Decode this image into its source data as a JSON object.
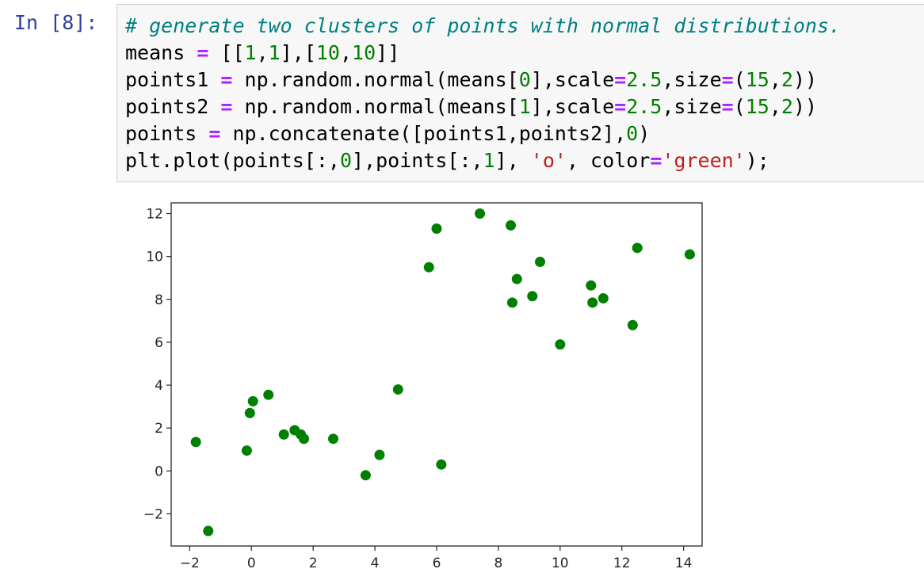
{
  "cell": {
    "prompt": "In [8]:",
    "code_lines": [
      [
        {
          "t": "# generate two clusters of points with normal distributions.",
          "c": "comment"
        }
      ],
      [
        {
          "t": "means ",
          "c": "plain"
        },
        {
          "t": "=",
          "c": "op"
        },
        {
          "t": " [[",
          "c": "plain"
        },
        {
          "t": "1",
          "c": "num"
        },
        {
          "t": ",",
          "c": "plain"
        },
        {
          "t": "1",
          "c": "num"
        },
        {
          "t": "],[",
          "c": "plain"
        },
        {
          "t": "10",
          "c": "num"
        },
        {
          "t": ",",
          "c": "plain"
        },
        {
          "t": "10",
          "c": "num"
        },
        {
          "t": "]]",
          "c": "plain"
        }
      ],
      [
        {
          "t": "points1 ",
          "c": "plain"
        },
        {
          "t": "=",
          "c": "op"
        },
        {
          "t": " np.random.normal(means[",
          "c": "plain"
        },
        {
          "t": "0",
          "c": "num"
        },
        {
          "t": "],scale",
          "c": "plain"
        },
        {
          "t": "=",
          "c": "op"
        },
        {
          "t": "2.5",
          "c": "num"
        },
        {
          "t": ",size",
          "c": "plain"
        },
        {
          "t": "=",
          "c": "op"
        },
        {
          "t": "(",
          "c": "plain"
        },
        {
          "t": "15",
          "c": "num"
        },
        {
          "t": ",",
          "c": "plain"
        },
        {
          "t": "2",
          "c": "num"
        },
        {
          "t": "))",
          "c": "plain"
        }
      ],
      [
        {
          "t": "points2 ",
          "c": "plain"
        },
        {
          "t": "=",
          "c": "op"
        },
        {
          "t": " np.random.normal(means[",
          "c": "plain"
        },
        {
          "t": "1",
          "c": "num"
        },
        {
          "t": "],scale",
          "c": "plain"
        },
        {
          "t": "=",
          "c": "op"
        },
        {
          "t": "2.5",
          "c": "num"
        },
        {
          "t": ",size",
          "c": "plain"
        },
        {
          "t": "=",
          "c": "op"
        },
        {
          "t": "(",
          "c": "plain"
        },
        {
          "t": "15",
          "c": "num"
        },
        {
          "t": ",",
          "c": "plain"
        },
        {
          "t": "2",
          "c": "num"
        },
        {
          "t": "))",
          "c": "plain"
        }
      ],
      [
        {
          "t": "points ",
          "c": "plain"
        },
        {
          "t": "=",
          "c": "op"
        },
        {
          "t": " np.concatenate([points1,points2],",
          "c": "plain"
        },
        {
          "t": "0",
          "c": "num"
        },
        {
          "t": ")",
          "c": "plain"
        }
      ],
      [
        {
          "t": "plt.plot(points[:,",
          "c": "plain"
        },
        {
          "t": "0",
          "c": "num"
        },
        {
          "t": "],points[:,",
          "c": "plain"
        },
        {
          "t": "1",
          "c": "num"
        },
        {
          "t": "], ",
          "c": "plain"
        },
        {
          "t": "'o'",
          "c": "str"
        },
        {
          "t": ", color",
          "c": "plain"
        },
        {
          "t": "=",
          "c": "op"
        },
        {
          "t": "'green'",
          "c": "str"
        },
        {
          "t": ");",
          "c": "plain"
        }
      ]
    ]
  },
  "colors": {
    "prompt": "#303f9f",
    "marker": "#008000",
    "axes": "#262626"
  },
  "chart_data": {
    "type": "scatter",
    "title": "",
    "xlabel": "",
    "ylabel": "",
    "xlim": [
      -2.6,
      14.6
    ],
    "ylim": [
      -3.5,
      12.5
    ],
    "xticks": [
      -2,
      0,
      2,
      4,
      6,
      8,
      10,
      12,
      14
    ],
    "yticks": [
      -2,
      0,
      2,
      4,
      6,
      8,
      10,
      12
    ],
    "xtick_labels": [
      "−2",
      "0",
      "2",
      "4",
      "6",
      "8",
      "10",
      "12",
      "14"
    ],
    "ytick_labels": [
      "−2",
      "0",
      "2",
      "4",
      "6",
      "8",
      "10",
      "12"
    ],
    "grid": false,
    "marker": "o",
    "color": "green",
    "points": [
      [
        -1.8,
        1.35
      ],
      [
        -1.4,
        -2.8
      ],
      [
        -0.15,
        0.95
      ],
      [
        -0.05,
        2.7
      ],
      [
        0.05,
        3.25
      ],
      [
        0.55,
        3.55
      ],
      [
        1.05,
        1.7
      ],
      [
        1.4,
        1.9
      ],
      [
        1.6,
        1.7
      ],
      [
        1.7,
        1.5
      ],
      [
        2.65,
        1.5
      ],
      [
        3.7,
        -0.2
      ],
      [
        4.15,
        0.75
      ],
      [
        4.75,
        3.8
      ],
      [
        6.15,
        0.3
      ],
      [
        5.75,
        9.5
      ],
      [
        6.0,
        11.3
      ],
      [
        7.4,
        12.0
      ],
      [
        8.4,
        11.45
      ],
      [
        8.45,
        7.85
      ],
      [
        8.6,
        8.95
      ],
      [
        9.1,
        8.15
      ],
      [
        9.35,
        9.75
      ],
      [
        10.0,
        5.9
      ],
      [
        11.0,
        8.65
      ],
      [
        11.05,
        7.85
      ],
      [
        11.4,
        8.05
      ],
      [
        12.35,
        6.8
      ],
      [
        12.5,
        10.4
      ],
      [
        14.2,
        10.1
      ]
    ]
  }
}
